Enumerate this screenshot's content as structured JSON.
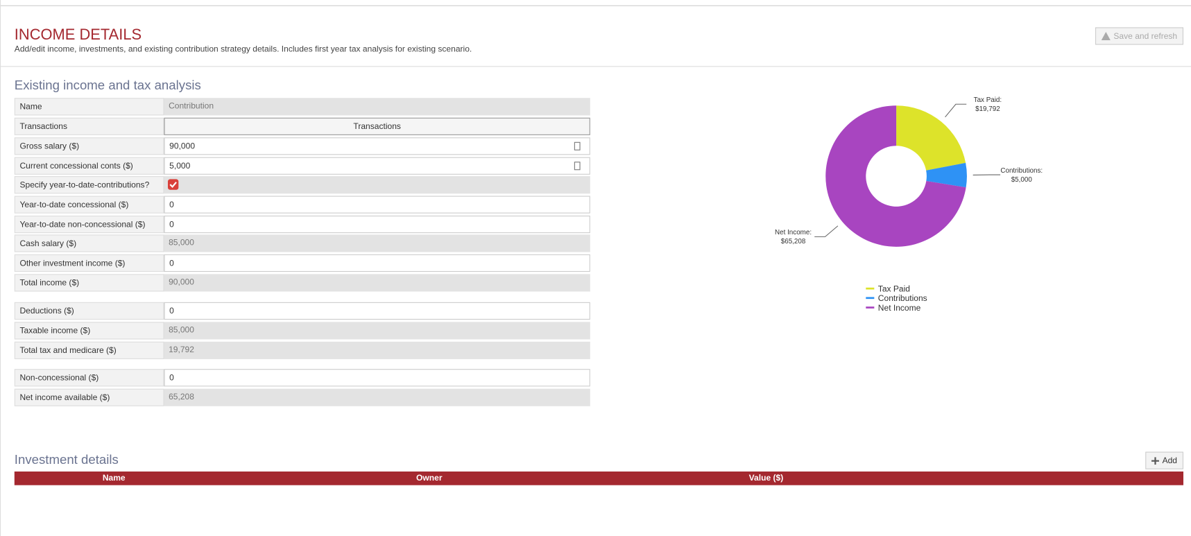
{
  "header": {
    "title": "INCOME DETAILS",
    "subtitle": "Add/edit income, investments, and existing contribution strategy details. Includes first year tax analysis for existing scenario.",
    "save_button": "Save and refresh"
  },
  "income_section": {
    "title": "Existing income and tax analysis",
    "rows": [
      [
        "Name",
        "Contribution"
      ],
      [
        "Transactions",
        "Transactions"
      ],
      [
        "Gross salary ($)",
        "90,000"
      ],
      [
        "Current concessional conts ($)",
        "5,000"
      ],
      [
        "Specify year-to-date-contributions?"
      ],
      [
        "Year-to-date concessional ($)",
        "0"
      ],
      [
        "Year-to-date non-concessional ($)",
        "0"
      ],
      [
        "Cash salary ($)",
        "85,000"
      ],
      [
        "Other investment income ($)",
        "0"
      ],
      [
        "Total income ($)",
        "90,000"
      ],
      [
        "Deductions ($)",
        "0"
      ],
      [
        "Taxable income ($)",
        "85,000"
      ],
      [
        "Total tax and medicare ($)",
        "19,792"
      ],
      [
        "Non-concessional ($)",
        "0"
      ],
      [
        "Net income available ($)",
        "65,208"
      ]
    ]
  },
  "chart_data": {
    "type": "pie",
    "donut": true,
    "categories": [
      "Tax Paid",
      "Contributions",
      "Net Income"
    ],
    "values": [
      19792,
      5000,
      65208
    ],
    "value_labels": [
      "$19,792",
      "$5,000",
      "$65,208"
    ],
    "label_names": [
      "Tax Paid:",
      "Contributions:",
      "Net Income:"
    ],
    "colors": [
      "#dde32a",
      "#2e92f5",
      "#a845c0"
    ]
  },
  "investments": {
    "title": "Investment details",
    "add_button": "Add",
    "columns": [
      "Name",
      "Owner",
      "Value ($)"
    ]
  }
}
